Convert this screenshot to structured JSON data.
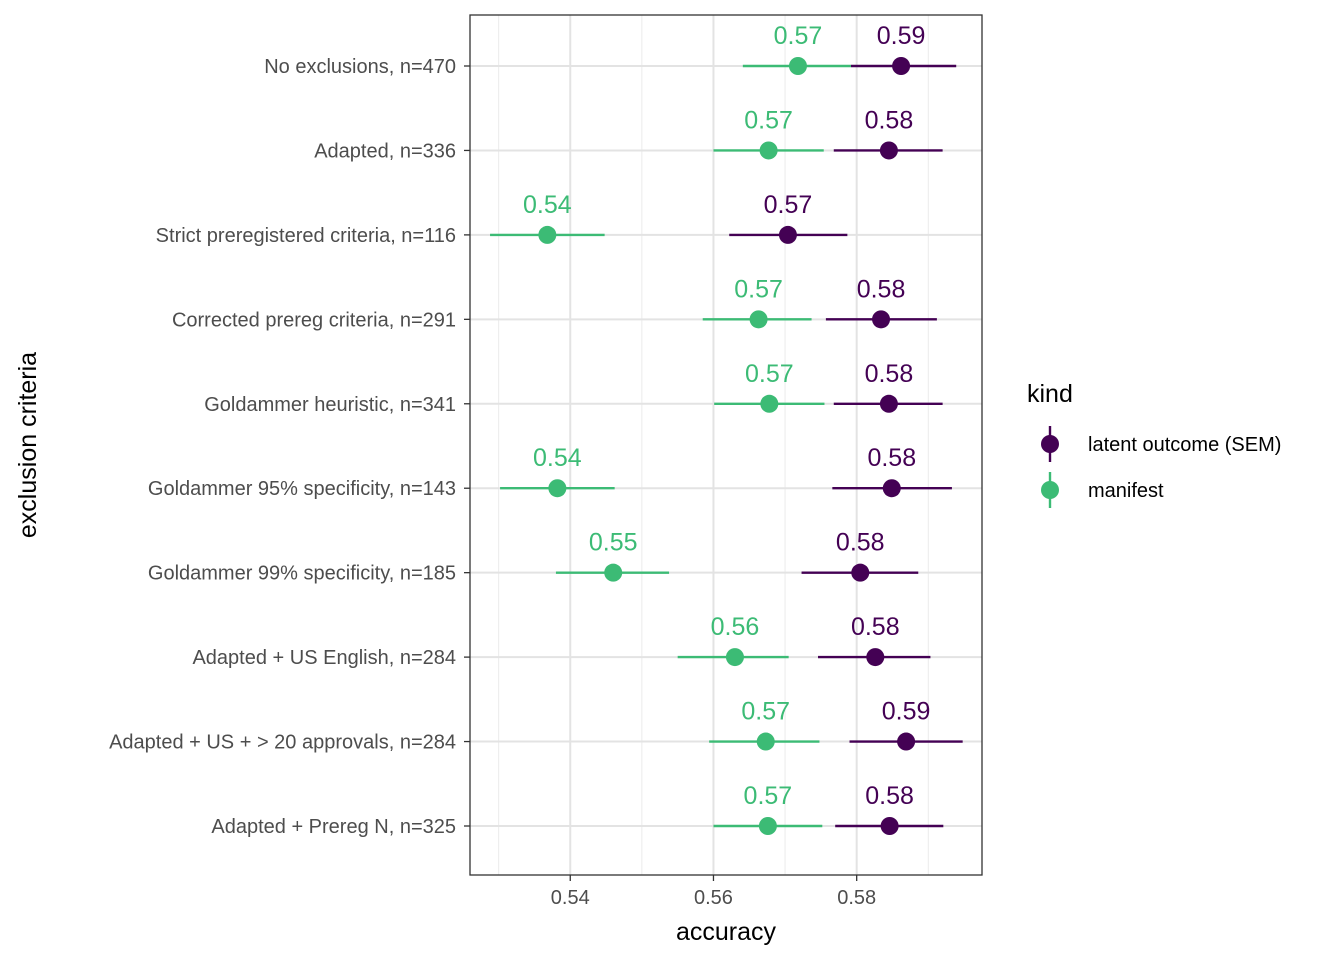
{
  "chart_data": {
    "type": "scatter",
    "subtype": "point-range (dot with horizontal error bars)",
    "title": "",
    "xlabel": "accuracy",
    "ylabel": "exclusion criteria",
    "xlim": [
      0.526,
      0.5975
    ],
    "xticks": [
      "0.54",
      "0.56",
      "0.58"
    ],
    "xtick_values": [
      0.54,
      0.56,
      0.58
    ],
    "grid": true,
    "legend_position": "right",
    "legend_title": "kind",
    "categories": [
      "No exclusions, n=470",
      "Adapted, n=336",
      "Strict preregistered criteria, n=116",
      "Corrected prereg criteria, n=291",
      "Goldammer heuristic, n=341",
      "Goldammer 95% specificity, n=143",
      "Goldammer 99% specificity, n=185",
      "Adapted + US English, n=284",
      "Adapted + US + > 20 approvals, n=284",
      "Adapted + Prereg N, n=325"
    ],
    "series": [
      {
        "name": "latent outcome (SEM)",
        "color": "#440154",
        "values": [
          0.5862,
          0.5845,
          0.5704,
          0.5834,
          0.5845,
          0.5849,
          0.5805,
          0.5826,
          0.5869,
          0.5846
        ],
        "lower": [
          0.5792,
          0.5768,
          0.5622,
          0.5757,
          0.5768,
          0.5766,
          0.5723,
          0.5746,
          0.579,
          0.577
        ],
        "upper": [
          0.5939,
          0.592,
          0.5787,
          0.5912,
          0.592,
          0.5933,
          0.5886,
          0.5903,
          0.5948,
          0.5921
        ],
        "labels": [
          "0.59",
          "0.58",
          "0.57",
          "0.58",
          "0.58",
          "0.58",
          "0.58",
          "0.58",
          "0.59",
          "0.58"
        ]
      },
      {
        "name": "manifest",
        "color": "#3CBB75",
        "values": [
          0.5718,
          0.5677,
          0.5368,
          0.5663,
          0.5678,
          0.5382,
          0.546,
          0.563,
          0.5673,
          0.5676
        ],
        "lower": [
          0.5641,
          0.56,
          0.5288,
          0.5585,
          0.5601,
          0.5302,
          0.538,
          0.555,
          0.5594,
          0.56
        ],
        "upper": [
          0.5792,
          0.5754,
          0.5448,
          0.5737,
          0.5755,
          0.5462,
          0.5538,
          0.5705,
          0.5748,
          0.5752
        ],
        "labels": [
          "0.57",
          "0.57",
          "0.54",
          "0.57",
          "0.57",
          "0.54",
          "0.55",
          "0.56",
          "0.57",
          "0.57"
        ]
      }
    ]
  }
}
